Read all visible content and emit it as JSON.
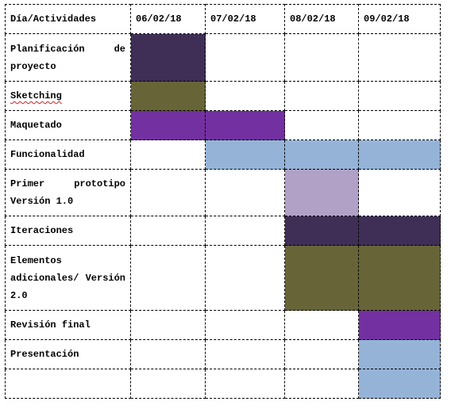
{
  "colors": {
    "dark_purple": "#3f2e55",
    "olive": "#676537",
    "violet": "#7330a1",
    "light_blue": "#95b3d7",
    "lavender": "#b1a1c7",
    "white": "#ffffff"
  },
  "table": {
    "header": [
      "Día/Actividades",
      "06/02/18",
      "07/02/18",
      "08/02/18",
      "09/02/18"
    ],
    "rows": [
      {
        "label": "Planificación de proyecto",
        "cells": [
          "dark_purple",
          "white",
          "white",
          "white"
        ]
      },
      {
        "label": "Sketching",
        "cells": [
          "olive",
          "white",
          "white",
          "white"
        ]
      },
      {
        "label": "Maquetado",
        "cells": [
          "violet",
          "violet",
          "white",
          "white"
        ]
      },
      {
        "label": "Funcionalidad",
        "cells": [
          "white",
          "light_blue",
          "light_blue",
          "light_blue"
        ]
      },
      {
        "label": "Primer prototipo Versión 1.0",
        "cells": [
          "white",
          "white",
          "lavender",
          "white"
        ]
      },
      {
        "label": "Iteraciones",
        "cells": [
          "white",
          "white",
          "dark_purple",
          "dark_purple"
        ]
      },
      {
        "label": "Elementos adicionales/ Versión 2.0",
        "cells": [
          "white",
          "white",
          "olive",
          "olive"
        ]
      },
      {
        "label": "Revisión final",
        "cells": [
          "white",
          "white",
          "white",
          "violet"
        ]
      },
      {
        "label": "Presentación",
        "cells": [
          "white",
          "white",
          "white",
          "light_blue"
        ]
      },
      {
        "label": "",
        "cells": [
          "white",
          "white",
          "white",
          "light_blue"
        ]
      }
    ]
  }
}
